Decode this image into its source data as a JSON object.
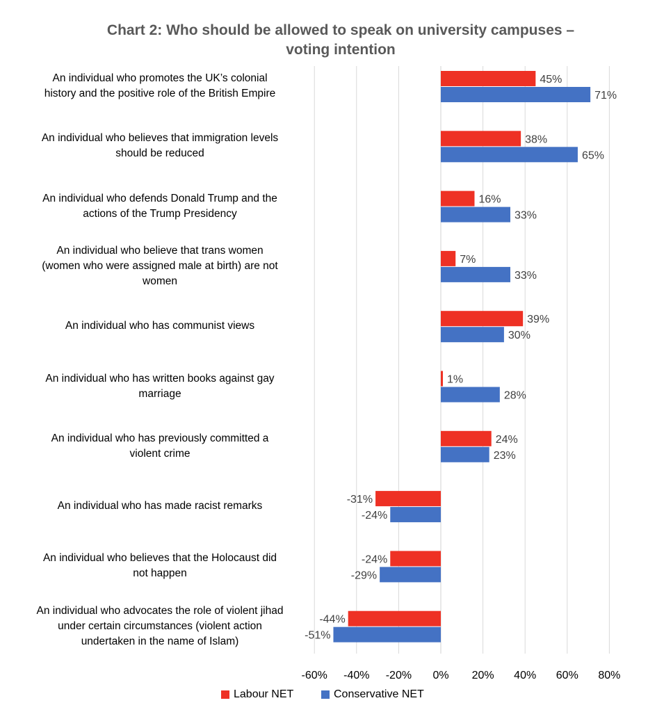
{
  "chart_data": {
    "type": "bar",
    "orientation": "horizontal",
    "title": "Chart 2: Who should be allowed to speak on university campuses – voting intention",
    "title_lines": [
      "Chart 2: Who should be allowed to speak on university campuses –",
      "voting intention"
    ],
    "categories": [
      [
        "An individual who promotes the UK’s colonial",
        "history and the positive role of the British Empire"
      ],
      [
        "An individual who believes that immigration levels",
        "should be reduced"
      ],
      [
        "An individual who defends Donald Trump and the",
        "actions of the Trump Presidency"
      ],
      [
        "An individual who believe that trans women",
        "(women who were assigned male at birth) are not",
        "women"
      ],
      [
        "An individual who has communist views"
      ],
      [
        "An individual who has written books against gay",
        "marriage"
      ],
      [
        "An individual who has previously committed a",
        "violent crime"
      ],
      [
        "An individual who has made racist remarks"
      ],
      [
        "An individual who believes that the Holocaust did",
        "not happen"
      ],
      [
        "An individual who advocates the role of violent jihad",
        "under certain circumstances (violent action",
        "undertaken in the name of Islam)"
      ]
    ],
    "series": [
      {
        "name": "Labour NET",
        "color": "#ee3124",
        "values": [
          45,
          38,
          16,
          7,
          39,
          1,
          24,
          -31,
          -24,
          -44
        ],
        "labels": [
          "45%",
          "38%",
          "16%",
          "7%",
          "39%",
          "1%",
          "24%",
          "-31%",
          "-24%",
          "-44%"
        ]
      },
      {
        "name": "Conservative NET",
        "color": "#4472c4",
        "values": [
          71,
          65,
          33,
          33,
          30,
          28,
          23,
          -24,
          -29,
          -51
        ],
        "labels": [
          "71%",
          "65%",
          "33%",
          "33%",
          "30%",
          "28%",
          "23%",
          "-24%",
          "-29%",
          "-51%"
        ]
      }
    ],
    "xlim": [
      -60,
      80
    ],
    "xticks": [
      -60,
      -40,
      -20,
      0,
      20,
      40,
      60,
      80
    ],
    "xtick_labels": [
      "-60%",
      "-40%",
      "-20%",
      "0%",
      "20%",
      "40%",
      "60%",
      "80%"
    ],
    "xlabel": "",
    "ylabel": "",
    "grid": true,
    "legend_position": "bottom"
  }
}
